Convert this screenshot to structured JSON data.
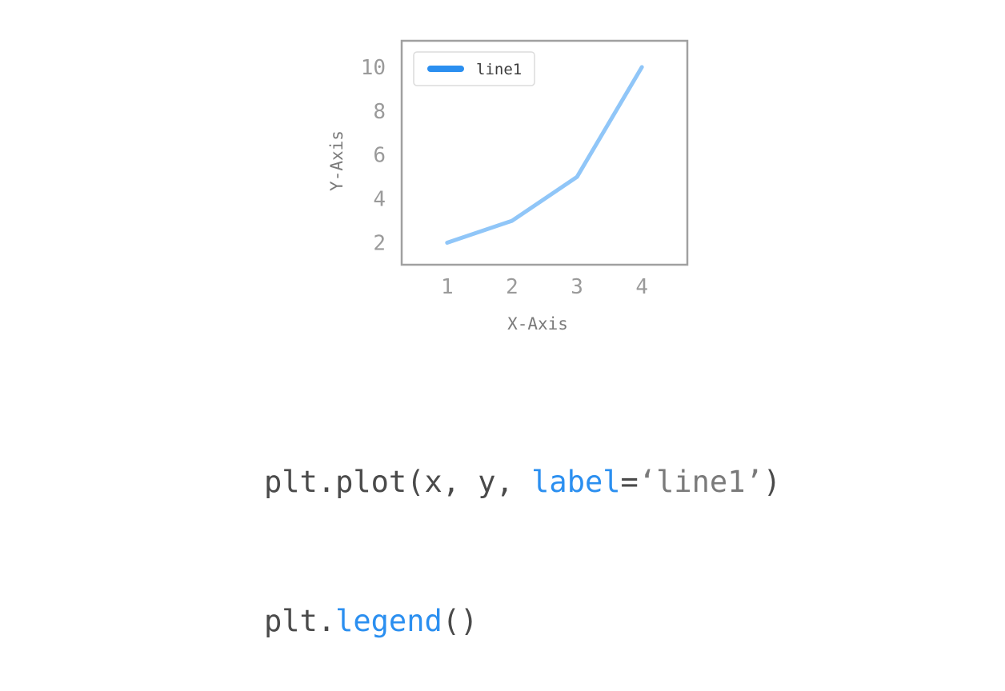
{
  "chart_data": {
    "type": "line",
    "x": [
      1,
      2,
      3,
      4
    ],
    "series": [
      {
        "name": "line1",
        "values": [
          2,
          3,
          5,
          10
        ],
        "color": "#90c6f8"
      }
    ],
    "xlabel": "X-Axis",
    "ylabel": "Y-Axis",
    "xticks": [
      "1",
      "2",
      "3",
      "4"
    ],
    "yticks": [
      "2",
      "4",
      "6",
      "8",
      "10"
    ],
    "xlim": [
      0.3,
      4.7
    ],
    "ylim": [
      1,
      11.2
    ],
    "grid": false,
    "legend": {
      "placement": "top-left",
      "swatch_color": "#2b8ff0"
    },
    "frame_color": "#a0a0a0"
  },
  "code": {
    "line1": {
      "part1": "plt.plot(x, y, ",
      "kw": "label",
      "eq": "=",
      "str": "‘line1’",
      "close": ")"
    },
    "line2": {
      "part1": "plt.",
      "kw": "legend",
      "close": "()"
    },
    "colors": {
      "keyword": "#2b8ff0",
      "text": "#4a4a4a",
      "string": "#7a7a7a"
    }
  }
}
